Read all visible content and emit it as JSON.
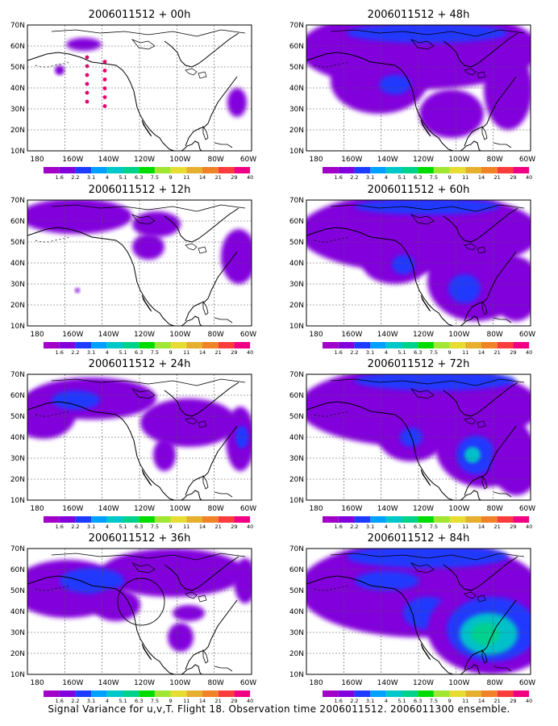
{
  "caption": "Signal Variance for u,v,T. Flight 18. Observation time 2006011512. 2006011300 ensemble.",
  "lat_labels": [
    "70N",
    "60N",
    "50N",
    "40N",
    "30N",
    "20N",
    "10N"
  ],
  "lon_labels": [
    "180",
    "160W",
    "140W",
    "120W",
    "100W",
    "80W",
    "60W"
  ],
  "colorbar": {
    "labels": [
      "1.6",
      "2.2",
      "3.1",
      "4",
      "5.1",
      "6.3",
      "7.5",
      "9",
      "11",
      "14",
      "21",
      "29",
      "40"
    ],
    "colors": [
      "#a000c8",
      "#8200dc",
      "#1e3cff",
      "#00a0ff",
      "#00c8c8",
      "#00d28c",
      "#00dc00",
      "#a0e632",
      "#e6dc32",
      "#e6af2d",
      "#f08228",
      "#fa3c3c",
      "#f00082"
    ]
  },
  "panels": [
    {
      "title": "2006011512 + 00h",
      "forecast_hour": 0
    },
    {
      "title": "2006011512 + 48h",
      "forecast_hour": 48
    },
    {
      "title": "2006011512 + 12h",
      "forecast_hour": 12
    },
    {
      "title": "2006011512 + 60h",
      "forecast_hour": 60
    },
    {
      "title": "2006011512 + 24h",
      "forecast_hour": 24
    },
    {
      "title": "2006011512 + 72h",
      "forecast_hour": 72
    },
    {
      "title": "2006011512 + 36h",
      "forecast_hour": 36
    },
    {
      "title": "2006011512 + 84h",
      "forecast_hour": 84
    }
  ]
}
